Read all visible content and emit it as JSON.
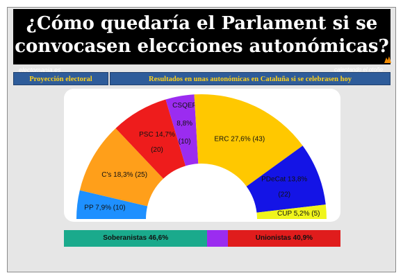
{
  "banner": {
    "title_line1": "¿Cómo quedaría el Parlament si se",
    "title_line2": "convocasen elecciones autonómicas?",
    "site": "electomania.es",
    "tagline": "calentando el otoño"
  },
  "tabs": {
    "left": "Proyección electoral",
    "right": "Resultados en unas autonómicas en Cataluña si se celebrasen hoy"
  },
  "chart_data": {
    "type": "pie",
    "variant": "parliament-semicircle",
    "total_seats": 135,
    "series": [
      {
        "name": "PP",
        "label": "PP 7,9% (10)",
        "percent": 7.9,
        "seats": 10,
        "color": "#1e90ff"
      },
      {
        "name": "C's",
        "label": "C's 18,3% (25)",
        "percent": 18.3,
        "seats": 25,
        "color": "#ff9f1a"
      },
      {
        "name": "PSC",
        "label": "PSC 14,7%",
        "seats_label": "(20)",
        "percent": 14.7,
        "seats": 20,
        "color": "#ee1c1c"
      },
      {
        "name": "CSQEP",
        "label": "CSQEP",
        "percent_label": "8,8%",
        "seats_label": "(10)",
        "percent": 8.8,
        "seats": 10,
        "color": "#9b2cf0"
      },
      {
        "name": "ERC",
        "label": "ERC 27,6% (43)",
        "percent": 27.6,
        "seats": 43,
        "color": "#ffc800"
      },
      {
        "name": "PDeCat",
        "label": "PDeCat 13,8%",
        "seats_label": "(22)",
        "percent": 13.8,
        "seats": 22,
        "color": "#1414e6"
      },
      {
        "name": "CUP",
        "label": "CUP 5,2% (5)",
        "percent": 5.2,
        "seats": 5,
        "color": "#f0f51c"
      }
    ],
    "blocs": [
      {
        "label": "Soberanistas 46,6%",
        "color": "#1aaa8c",
        "seats": 70
      },
      {
        "label": "",
        "color": "#9b2cf0",
        "seats": 10
      },
      {
        "label": "Unionistas 40,9%",
        "color": "#e01c1c",
        "seats": 55
      }
    ]
  }
}
